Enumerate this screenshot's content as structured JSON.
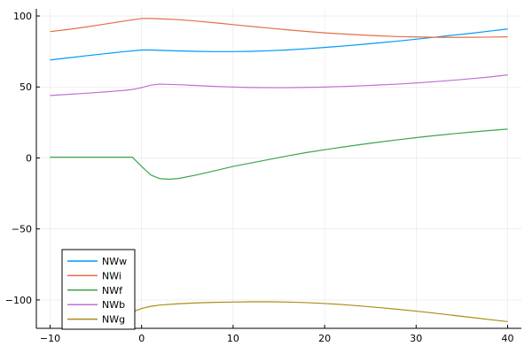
{
  "chart_data": {
    "type": "line",
    "title": "",
    "xlabel": "",
    "ylabel": "",
    "xlim": [
      -11.5,
      41.5
    ],
    "ylim": [
      -120,
      105
    ],
    "xticks": [
      -10,
      0,
      10,
      20,
      30,
      40
    ],
    "yticks": [
      -100,
      -50,
      0,
      50,
      100
    ],
    "xtick_labels": [
      "−10",
      "0",
      "10",
      "20",
      "30",
      "40"
    ],
    "ytick_labels": [
      "−100",
      "−50",
      "0",
      "50",
      "100"
    ],
    "grid": true,
    "legend_position": "bottom-left",
    "series": [
      {
        "name": "NWw",
        "color": "#009AFA",
        "x": [
          -10,
          -8,
          -6,
          -4,
          -2,
          0,
          1,
          2,
          4,
          6,
          8,
          10,
          12,
          14,
          16,
          18,
          20,
          22,
          24,
          26,
          28,
          30,
          32,
          34,
          36,
          38,
          40
        ],
        "y": [
          69,
          70.5,
          72,
          73.4,
          74.8,
          76,
          76,
          75.8,
          75.4,
          75.1,
          74.9,
          74.9,
          75.1,
          75.5,
          76.1,
          76.9,
          77.8,
          78.8,
          79.9,
          81.1,
          82.3,
          83.6,
          85,
          86.4,
          87.8,
          89.3,
          90.8
        ]
      },
      {
        "name": "NWi",
        "color": "#E36F47",
        "x": [
          -10,
          -8,
          -6,
          -4,
          -2,
          0,
          1,
          2,
          4,
          6,
          8,
          10,
          12,
          14,
          16,
          18,
          20,
          22,
          24,
          26,
          28,
          30,
          32,
          34,
          36,
          38,
          40
        ],
        "y": [
          89,
          90.5,
          92.3,
          94.3,
          96.3,
          98.2,
          98.2,
          98,
          97.4,
          96.4,
          95.2,
          93.9,
          92.6,
          91.4,
          90.2,
          89.1,
          88.1,
          87.3,
          86.6,
          86,
          85.5,
          85.2,
          85,
          84.9,
          85,
          85.1,
          85.3
        ]
      },
      {
        "name": "NWf",
        "color": "#3EA44E",
        "x": [
          -10,
          -8,
          -6,
          -4,
          -2,
          -1,
          0,
          1,
          2,
          3,
          4,
          6,
          8,
          10,
          12,
          14,
          16,
          18,
          20,
          22,
          24,
          26,
          28,
          30,
          32,
          34,
          36,
          38,
          40
        ],
        "y": [
          0.5,
          0.5,
          0.5,
          0.5,
          0.5,
          0.5,
          -6,
          -12,
          -14.6,
          -15,
          -14.5,
          -12,
          -9,
          -6,
          -3.5,
          -1,
          1.5,
          3.8,
          5.8,
          7.7,
          9.5,
          11.2,
          12.8,
          14.3,
          15.7,
          17,
          18.2,
          19.3,
          20.3
        ]
      },
      {
        "name": "NWb",
        "color": "#C271D2",
        "x": [
          -10,
          -8,
          -6,
          -4,
          -2,
          -1,
          0,
          1,
          2,
          4,
          6,
          8,
          10,
          12,
          14,
          16,
          18,
          20,
          22,
          24,
          26,
          28,
          30,
          32,
          34,
          36,
          38,
          40
        ],
        "y": [
          44,
          44.8,
          45.6,
          46.5,
          47.5,
          48.2,
          49.5,
          51.3,
          52,
          51.6,
          51,
          50.4,
          49.9,
          49.6,
          49.5,
          49.5,
          49.7,
          49.9,
          50.3,
          50.8,
          51.4,
          52,
          52.8,
          53.7,
          54.7,
          55.8,
          57,
          58.5
        ]
      },
      {
        "name": "NWg",
        "color": "#AC8D18",
        "x": [
          -10,
          -1.5,
          -1,
          0,
          1,
          2,
          4,
          6,
          8,
          10,
          12,
          14,
          16,
          18,
          20,
          22,
          24,
          26,
          28,
          30,
          32,
          34,
          36,
          38,
          40
        ],
        "y": [
          null,
          -108.5,
          -108.5,
          -106,
          -104.5,
          -103.6,
          -102.7,
          -102.1,
          -101.7,
          -101.5,
          -101.3,
          -101.3,
          -101.5,
          -101.9,
          -102.5,
          -103.3,
          -104.3,
          -105.4,
          -106.6,
          -107.9,
          -109.3,
          -110.8,
          -112.3,
          -113.8,
          -115.3
        ]
      }
    ]
  }
}
